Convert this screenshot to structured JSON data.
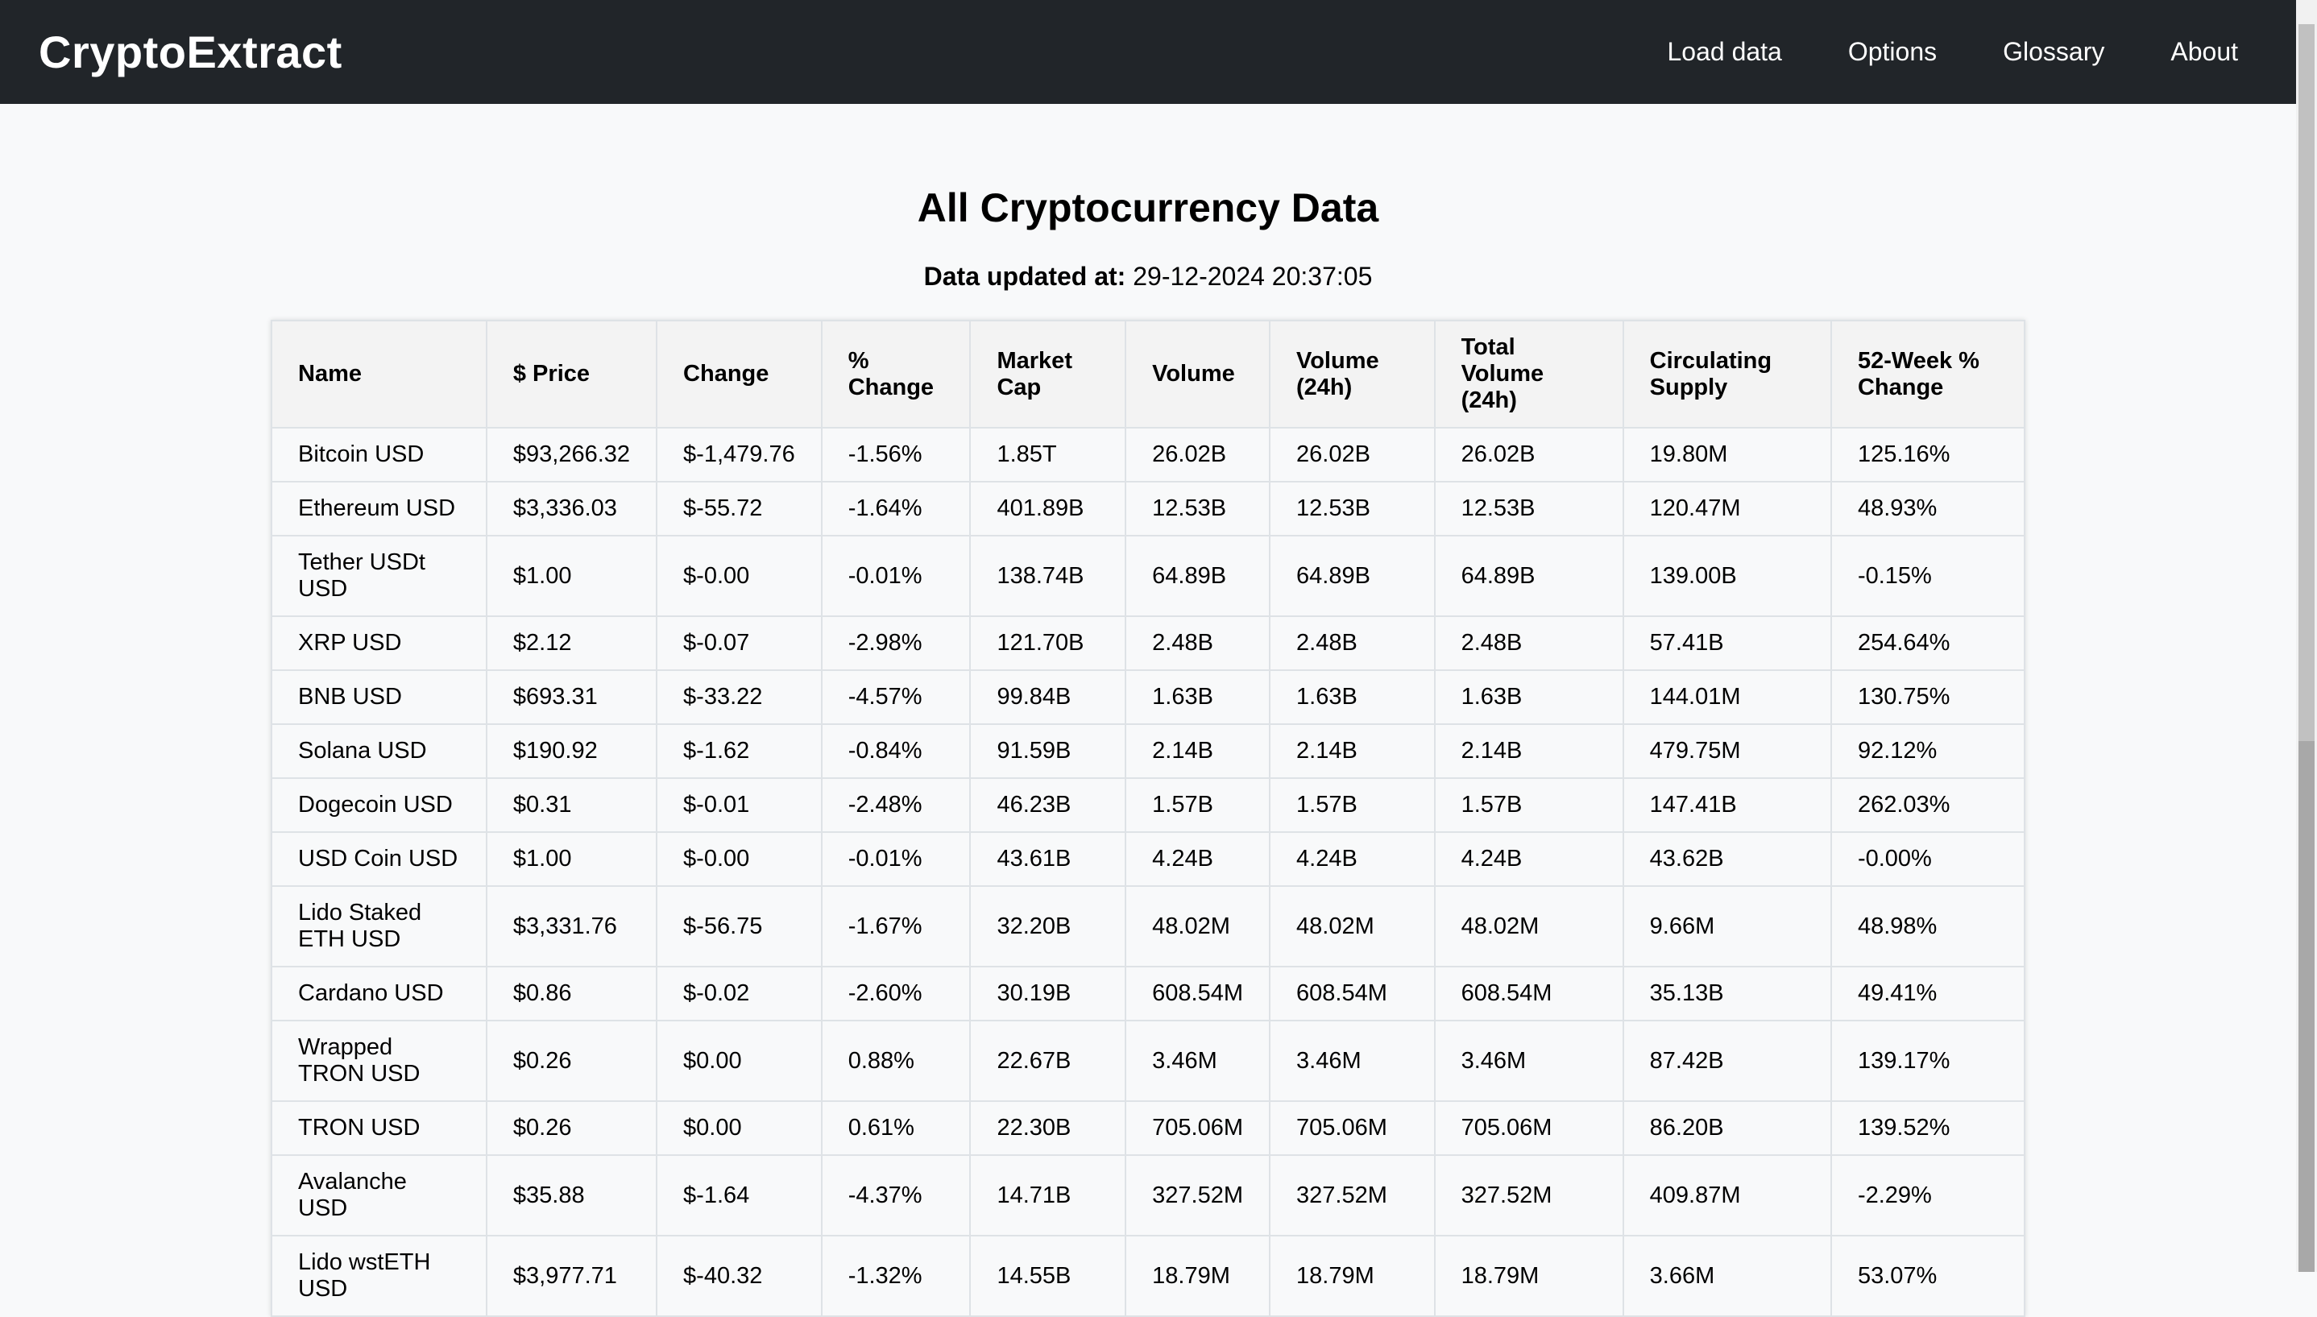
{
  "brand": "CryptoExtract",
  "nav": [
    "Load data",
    "Options",
    "Glossary",
    "About"
  ],
  "page_title": "All Cryptocurrency Data",
  "updated_label": "Data updated at:",
  "updated_value": " 29-12-2024 20:37:05",
  "columns": [
    "Name",
    "$ Price",
    "Change",
    "% Change",
    "Market Cap",
    "Volume",
    "Volume (24h)",
    "Total Volume (24h)",
    "Circulating Supply",
    "52-Week % Change"
  ],
  "rows": [
    [
      "Bitcoin USD",
      "$93,266.32",
      "$-1,479.76",
      "-1.56%",
      "1.85T",
      "26.02B",
      "26.02B",
      "26.02B",
      "19.80M",
      "125.16%"
    ],
    [
      "Ethereum USD",
      "$3,336.03",
      "$-55.72",
      "-1.64%",
      "401.89B",
      "12.53B",
      "12.53B",
      "12.53B",
      "120.47M",
      "48.93%"
    ],
    [
      "Tether USDt USD",
      "$1.00",
      "$-0.00",
      "-0.01%",
      "138.74B",
      "64.89B",
      "64.89B",
      "64.89B",
      "139.00B",
      "-0.15%"
    ],
    [
      "XRP USD",
      "$2.12",
      "$-0.07",
      "-2.98%",
      "121.70B",
      "2.48B",
      "2.48B",
      "2.48B",
      "57.41B",
      "254.64%"
    ],
    [
      "BNB USD",
      "$693.31",
      "$-33.22",
      "-4.57%",
      "99.84B",
      "1.63B",
      "1.63B",
      "1.63B",
      "144.01M",
      "130.75%"
    ],
    [
      "Solana USD",
      "$190.92",
      "$-1.62",
      "-0.84%",
      "91.59B",
      "2.14B",
      "2.14B",
      "2.14B",
      "479.75M",
      "92.12%"
    ],
    [
      "Dogecoin USD",
      "$0.31",
      "$-0.01",
      "-2.48%",
      "46.23B",
      "1.57B",
      "1.57B",
      "1.57B",
      "147.41B",
      "262.03%"
    ],
    [
      "USD Coin USD",
      "$1.00",
      "$-0.00",
      "-0.01%",
      "43.61B",
      "4.24B",
      "4.24B",
      "4.24B",
      "43.62B",
      "-0.00%"
    ],
    [
      "Lido Staked ETH USD",
      "$3,331.76",
      "$-56.75",
      "-1.67%",
      "32.20B",
      "48.02M",
      "48.02M",
      "48.02M",
      "9.66M",
      "48.98%"
    ],
    [
      "Cardano USD",
      "$0.86",
      "$-0.02",
      "-2.60%",
      "30.19B",
      "608.54M",
      "608.54M",
      "608.54M",
      "35.13B",
      "49.41%"
    ],
    [
      "Wrapped TRON USD",
      "$0.26",
      "$0.00",
      "0.88%",
      "22.67B",
      "3.46M",
      "3.46M",
      "3.46M",
      "87.42B",
      "139.17%"
    ],
    [
      "TRON USD",
      "$0.26",
      "$0.00",
      "0.61%",
      "22.30B",
      "705.06M",
      "705.06M",
      "705.06M",
      "86.20B",
      "139.52%"
    ],
    [
      "Avalanche USD",
      "$35.88",
      "$-1.64",
      "-4.37%",
      "14.71B",
      "327.52M",
      "327.52M",
      "327.52M",
      "409.87M",
      "-2.29%"
    ],
    [
      "Lido wstETH USD",
      "$3,977.71",
      "$-40.32",
      "-1.32%",
      "14.55B",
      "18.79M",
      "18.79M",
      "18.79M",
      "3.66M",
      "53.07%"
    ]
  ],
  "tall_rows": [
    2,
    8,
    10,
    12,
    13
  ]
}
